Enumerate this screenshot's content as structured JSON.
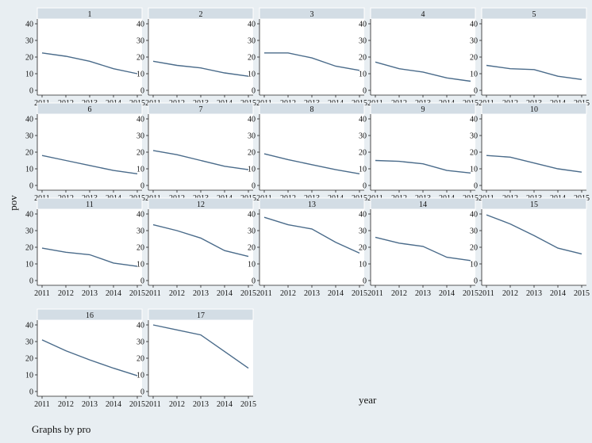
{
  "figure": {
    "ylabel": "pov",
    "xlabel": "year",
    "note": "Graphs by pro"
  },
  "chart_data": {
    "type": "line",
    "layout": "small-multiples",
    "by": "pro",
    "x_ticks": [
      2011,
      2012,
      2013,
      2014,
      2015
    ],
    "y_ticks": [
      0,
      10,
      20,
      30,
      40
    ],
    "ylim": [
      0,
      40
    ],
    "xlim": [
      2011,
      2015
    ],
    "grid": false,
    "line_color": "#4a6b8a",
    "panels": [
      {
        "label": "1",
        "x": [
          2011,
          2012,
          2013,
          2014,
          2015
        ],
        "y": [
          22.5,
          20.5,
          17.5,
          13.0,
          10.0
        ]
      },
      {
        "label": "2",
        "x": [
          2011,
          2012,
          2013,
          2014,
          2015
        ],
        "y": [
          17.5,
          15.0,
          13.5,
          10.5,
          8.5
        ]
      },
      {
        "label": "3",
        "x": [
          2011,
          2012,
          2013,
          2014,
          2015
        ],
        "y": [
          22.5,
          22.5,
          19.5,
          14.5,
          12.0
        ]
      },
      {
        "label": "4",
        "x": [
          2011,
          2012,
          2013,
          2014,
          2015
        ],
        "y": [
          17.0,
          13.0,
          11.0,
          7.5,
          5.5
        ]
      },
      {
        "label": "5",
        "x": [
          2011,
          2012,
          2013,
          2014,
          2015
        ],
        "y": [
          15.0,
          13.0,
          12.5,
          8.5,
          6.5
        ]
      },
      {
        "label": "6",
        "x": [
          2011,
          2012,
          2013,
          2014,
          2015
        ],
        "y": [
          18.0,
          15.0,
          12.0,
          9.0,
          7.0
        ]
      },
      {
        "label": "7",
        "x": [
          2011,
          2012,
          2013,
          2014,
          2015
        ],
        "y": [
          21.0,
          18.5,
          15.0,
          11.5,
          9.5
        ]
      },
      {
        "label": "8",
        "x": [
          2011,
          2012,
          2013,
          2014,
          2015
        ],
        "y": [
          19.0,
          15.5,
          12.5,
          9.5,
          7.0
        ]
      },
      {
        "label": "9",
        "x": [
          2011,
          2012,
          2013,
          2014,
          2015
        ],
        "y": [
          15.0,
          14.5,
          13.0,
          9.0,
          7.5
        ]
      },
      {
        "label": "10",
        "x": [
          2011,
          2012,
          2013,
          2014,
          2015
        ],
        "y": [
          18.0,
          17.0,
          13.5,
          10.0,
          8.0
        ]
      },
      {
        "label": "11",
        "x": [
          2011,
          2012,
          2013,
          2014,
          2015
        ],
        "y": [
          19.5,
          17.0,
          15.5,
          10.5,
          8.5
        ]
      },
      {
        "label": "12",
        "x": [
          2011,
          2012,
          2013,
          2014,
          2015
        ],
        "y": [
          33.5,
          30.0,
          25.5,
          18.0,
          14.5
        ]
      },
      {
        "label": "13",
        "x": [
          2011,
          2012,
          2013,
          2014,
          2015
        ],
        "y": [
          38.0,
          33.5,
          31.0,
          23.0,
          16.5
        ]
      },
      {
        "label": "14",
        "x": [
          2011,
          2012,
          2013,
          2014,
          2015
        ],
        "y": [
          26.0,
          22.5,
          20.5,
          14.0,
          12.0
        ]
      },
      {
        "label": "15",
        "x": [
          2011,
          2012,
          2013,
          2014,
          2015
        ],
        "y": [
          39.5,
          34.0,
          27.0,
          19.5,
          16.0
        ]
      },
      {
        "label": "16",
        "x": [
          2011,
          2012,
          2013,
          2014,
          2015
        ],
        "y": [
          31.0,
          24.5,
          19.0,
          14.0,
          9.5
        ]
      },
      {
        "label": "17",
        "x": [
          2011,
          2012,
          2013,
          2014,
          2015
        ],
        "y": [
          40.0,
          37.0,
          34.0,
          24.0,
          14.0
        ]
      }
    ]
  }
}
